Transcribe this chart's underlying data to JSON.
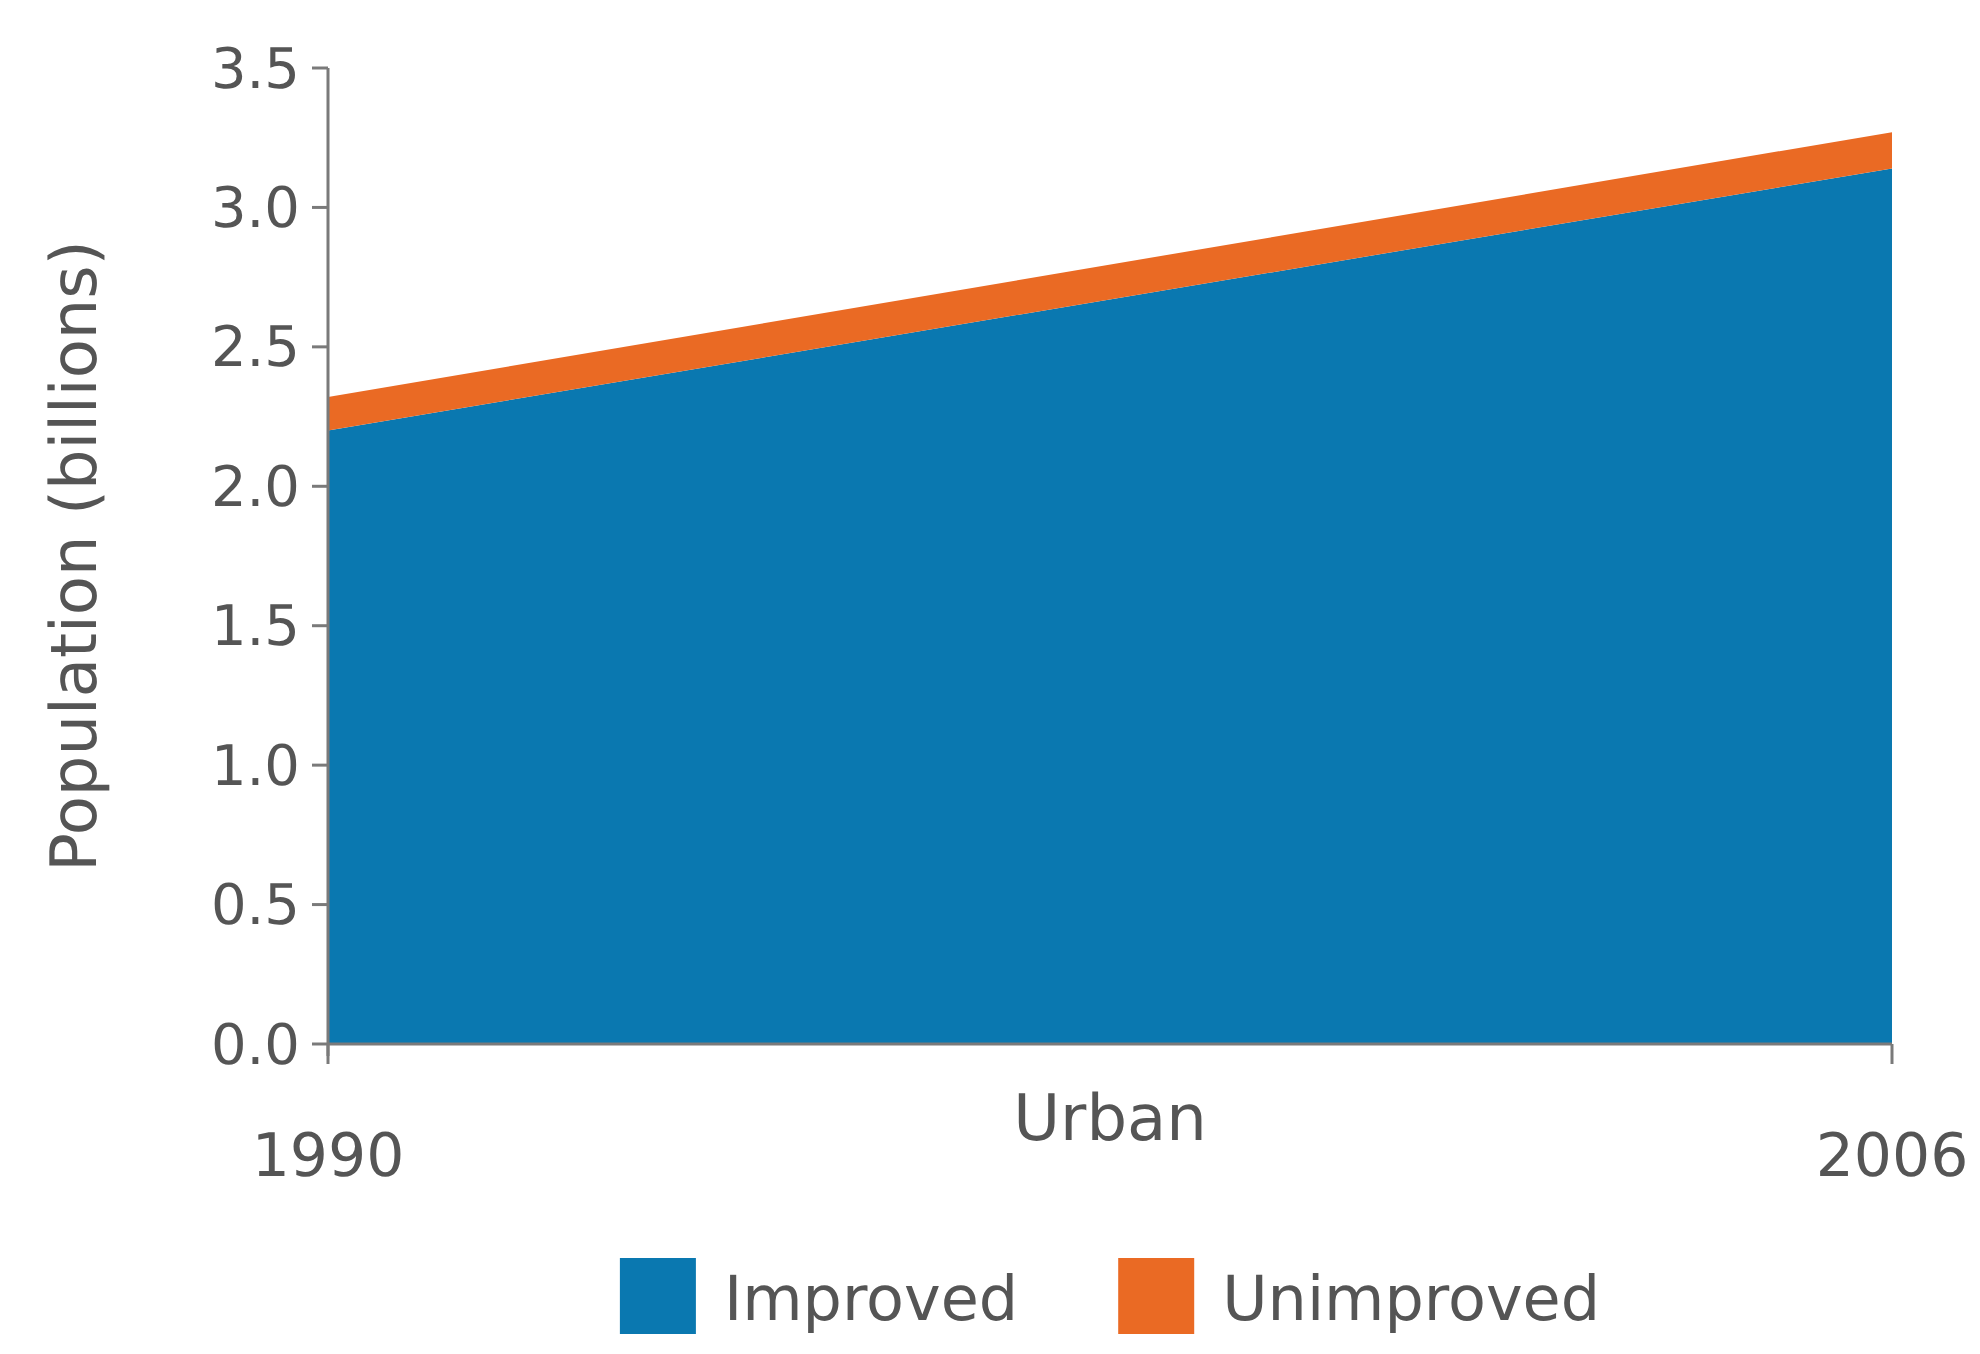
{
  "chart_data": {
    "type": "area",
    "stacked": true,
    "x": [
      1990,
      2006
    ],
    "xlim": [
      1990,
      2006
    ],
    "xticks": [
      1990,
      2006
    ],
    "xlabel": "Urban",
    "ylabel": "Population (billions)",
    "ylim": [
      0,
      3.5
    ],
    "yticks": [
      {
        "value": 0,
        "label": "0.0"
      },
      0.5,
      {
        "value": 1,
        "label": "1.0"
      },
      1.5,
      {
        "value": 2,
        "label": "2.0"
      },
      2.5,
      {
        "value": 3,
        "label": "3.0"
      },
      3.5
    ],
    "series": [
      {
        "name": "Improved",
        "color": "#0a78b0",
        "values": [
          2.2,
          3.14
        ]
      },
      {
        "name": "Unimproved",
        "color": "#ea6a24",
        "values": [
          0.12,
          0.13
        ]
      }
    ],
    "legend": "bottom"
  }
}
